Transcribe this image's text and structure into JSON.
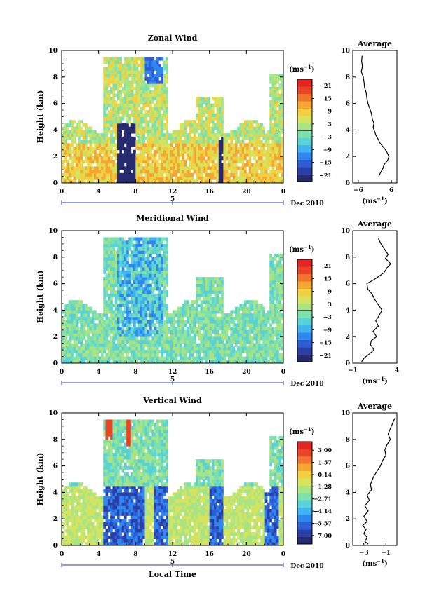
{
  "colors": {
    "palette": [
      "#262a6e",
      "#2b3fa8",
      "#2e5ed6",
      "#2f86ee",
      "#3fb2ef",
      "#59d2d6",
      "#7de0ab",
      "#a9e484",
      "#d5e35f",
      "#f2cf3e",
      "#f5a531",
      "#f0742c",
      "#e84527",
      "#e52521"
    ]
  },
  "shared": {
    "ylabel": "Height (km)",
    "date_label": "Dec 2010",
    "date_tick": "5",
    "unit_label": "(ms",
    "unit_exp": "−1",
    "avg_unit_label": "(ms",
    "avg_unit_exp": "−1",
    "xlabel_bottom": "Local Time"
  },
  "chart_data": [
    {
      "type": "heatmap",
      "title": "Zonal Wind",
      "x_ticks": [
        "0",
        "4",
        "8",
        "12",
        "16",
        "20",
        "0"
      ],
      "y_ticks": [
        "0",
        "2",
        "4",
        "6",
        "8",
        "10"
      ],
      "xlim": [
        0,
        24
      ],
      "ylim": [
        0,
        10
      ],
      "colorbar_ticks": [
        "21",
        "15",
        "9",
        "3",
        "−3",
        "−9",
        "−15",
        "−21"
      ],
      "colorbar_range": [
        -24,
        24
      ],
      "average": {
        "title": "Average",
        "x_ticks": [
          "−6",
          "6"
        ],
        "xlim": [
          -8,
          8
        ],
        "x": [
          -4.6,
          -4.8,
          -4.5,
          -4.9,
          -4.2,
          -3.9,
          -3.7,
          -3.1,
          -2.9,
          -2.5,
          -1.8,
          -1.2,
          -0.9,
          -0.3,
          -0.6,
          -0.1,
          0.4,
          1.2,
          1.9,
          3.1,
          4.2,
          5.1,
          4.6,
          3.4,
          2.9,
          2.1,
          1.4
        ],
        "y": [
          9.6,
          9.2,
          8.8,
          8.4,
          8.0,
          7.6,
          7.2,
          6.8,
          6.4,
          6.0,
          5.6,
          5.2,
          4.8,
          4.5,
          4.2,
          3.9,
          3.6,
          3.3,
          3.0,
          2.7,
          2.4,
          2.0,
          1.7,
          1.4,
          1.1,
          0.8,
          0.5
        ]
      }
    },
    {
      "type": "heatmap",
      "title": "Meridional Wind",
      "x_ticks": [
        "0",
        "4",
        "8",
        "12",
        "16",
        "20",
        "0"
      ],
      "y_ticks": [
        "0",
        "2",
        "4",
        "6",
        "8",
        "10"
      ],
      "xlim": [
        0,
        24
      ],
      "ylim": [
        0,
        10
      ],
      "colorbar_ticks": [
        "21",
        "15",
        "9",
        "3",
        "−3",
        "−9",
        "−15",
        "−21"
      ],
      "colorbar_range": [
        -24,
        24
      ],
      "average": {
        "title": "Average",
        "x_ticks": [
          "−1",
          "4"
        ],
        "xlim": [
          -1,
          4
        ],
        "x": [
          1.9,
          2.2,
          2.6,
          3.0,
          2.7,
          3.3,
          2.9,
          2.5,
          1.4,
          0.6,
          0.7,
          1.2,
          1.5,
          1.9,
          2.3,
          2.0,
          1.6,
          1.9,
          1.3,
          1.7,
          1.1,
          1.0,
          1.4,
          0.9,
          0.3,
          0.0
        ],
        "y": [
          9.4,
          9.0,
          8.6,
          8.2,
          7.9,
          7.5,
          7.2,
          6.8,
          6.3,
          6.0,
          5.6,
          5.2,
          4.8,
          4.4,
          4.0,
          3.6,
          3.2,
          2.8,
          2.4,
          2.0,
          1.7,
          1.4,
          1.0,
          0.7,
          0.4,
          0.1
        ]
      }
    },
    {
      "type": "heatmap",
      "title": "Vertical Wind",
      "x_ticks": [
        "0",
        "4",
        "8",
        "12",
        "16",
        "20",
        "0"
      ],
      "y_ticks": [
        "0",
        "2",
        "4",
        "6",
        "8",
        "10"
      ],
      "xlim": [
        0,
        24
      ],
      "ylim": [
        0,
        10
      ],
      "colorbar_ticks": [
        "3.00",
        "1.57",
        "0.14",
        "−1.28",
        "−2.71",
        "−4.14",
        "−5.57",
        "−7.00"
      ],
      "colorbar_range": [
        -8,
        4
      ],
      "average": {
        "title": "Average",
        "x_ticks": [
          "−3",
          "−1"
        ],
        "xlim": [
          -4,
          0
        ],
        "x": [
          -0.2,
          -0.4,
          -0.6,
          -0.8,
          -0.6,
          -0.9,
          -1.1,
          -1.0,
          -1.3,
          -1.5,
          -1.8,
          -2.1,
          -2.4,
          -2.3,
          -2.7,
          -2.5,
          -2.9,
          -2.6,
          -3.0,
          -2.7,
          -3.1,
          -2.8,
          -3.0,
          -2.7,
          -2.9,
          -2.6
        ],
        "y": [
          9.6,
          9.2,
          8.8,
          8.4,
          8.0,
          7.6,
          7.2,
          6.8,
          6.4,
          6.0,
          5.6,
          5.2,
          4.6,
          4.2,
          3.8,
          3.4,
          3.0,
          2.6,
          2.2,
          1.8,
          1.5,
          1.2,
          0.9,
          0.6,
          0.3,
          0.1
        ]
      }
    }
  ]
}
